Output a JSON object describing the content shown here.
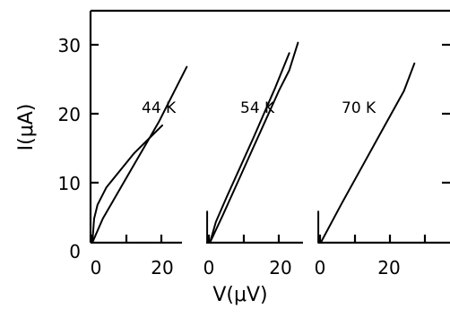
{
  "chart_data": {
    "type": "line",
    "ylabel": "I(μA)",
    "xlabel": "V(μV)",
    "ylim": [
      0,
      35
    ],
    "y_ticks": [
      "0",
      "10",
      "20",
      "30"
    ],
    "panels": [
      {
        "annotation": "44 K",
        "x_ticks": [
          "0",
          "20"
        ],
        "xlim": [
          -2,
          29
        ],
        "series": [
          {
            "x": [
              0,
              0.5,
              1.5,
              4,
              8,
              12,
              16,
              20
            ],
            "y": [
              0,
              3.5,
              5.5,
              8,
              10.5,
              13,
              15,
              17
            ]
          },
          {
            "x": [
              0,
              3,
              7,
              11,
              15,
              19,
              23,
              27
            ],
            "y": [
              0,
              3.5,
              7,
              10.5,
              14,
              17.5,
              21.5,
              25.5
            ]
          }
        ]
      },
      {
        "annotation": "54 K",
        "x_ticks": [
          "0",
          "20"
        ],
        "xlim": [
          -2,
          29
        ],
        "series": [
          {
            "x": [
              -0.5,
              -0.5,
              0.3
            ],
            "y": [
              4.5,
              0,
              0
            ]
          },
          {
            "x": [
              0.3,
              2,
              5,
              9,
              13,
              16,
              19,
              21,
              23
            ],
            "y": [
              0,
              3,
              6.5,
              11,
              15.5,
              19,
              22.5,
              25,
              27.5
            ]
          },
          {
            "x": [
              0.3,
              4,
              8,
              12,
              16,
              20,
              23,
              25.5
            ],
            "y": [
              0,
              4,
              8.5,
              13,
              17.5,
              22,
              25,
              29
            ]
          }
        ]
      },
      {
        "annotation": "70 K",
        "x_ticks": [
          "0",
          "20"
        ],
        "xlim": [
          -2,
          29
        ],
        "series": [
          {
            "x": [
              -0.5,
              -0.5,
              0.2
            ],
            "y": [
              4.5,
              0,
              0
            ]
          },
          {
            "x": [
              0.2,
              6,
              12,
              18,
              24,
              27
            ],
            "y": [
              0,
              5.5,
              11,
              16.5,
              22,
              26
            ]
          }
        ]
      }
    ]
  }
}
